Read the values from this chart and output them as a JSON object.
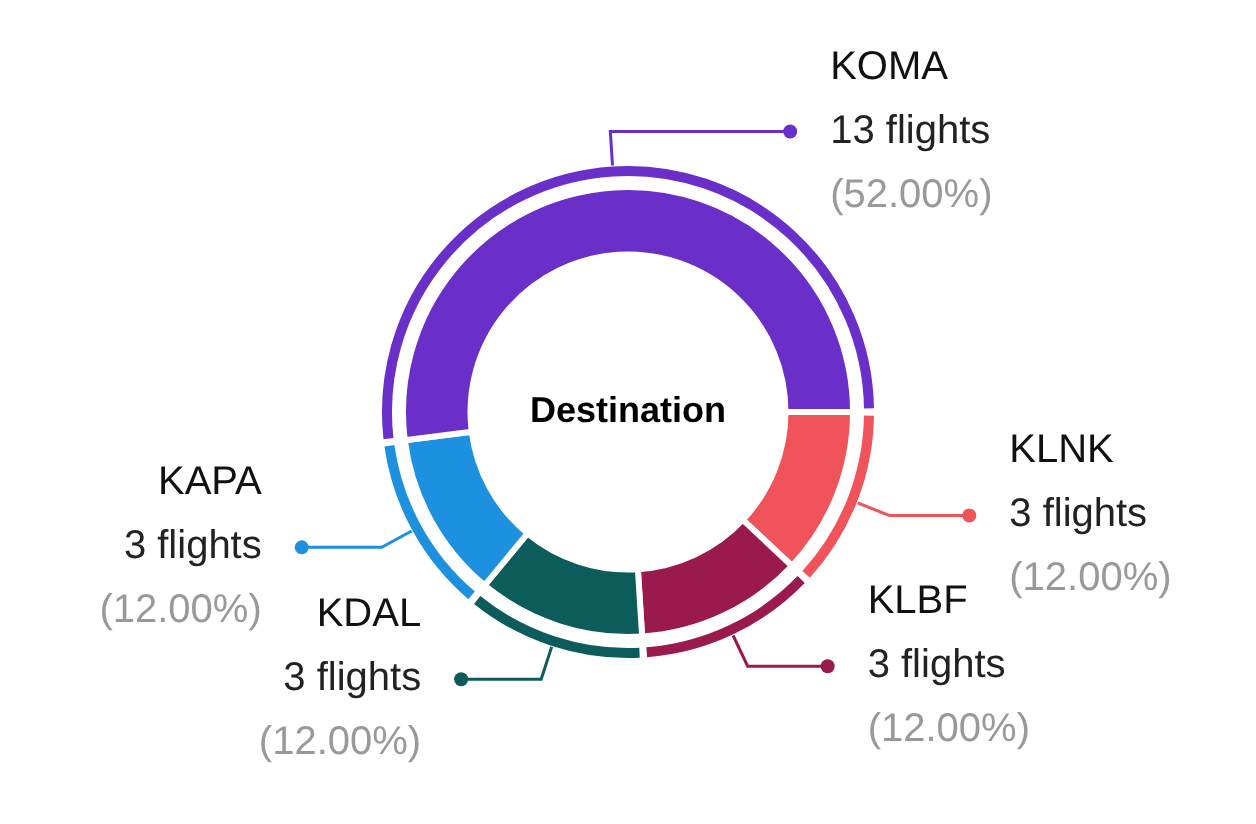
{
  "chart_data": {
    "type": "donut",
    "title": "Destination",
    "categories": [
      "KLNK",
      "KLBF",
      "KDAL",
      "KAPA",
      "KOMA"
    ],
    "values": [
      3,
      3,
      3,
      3,
      13
    ],
    "colors": [
      "#f0545a",
      "#9b1a4d",
      "#0d5c5c",
      "#1e90e0",
      "#6a2fc8"
    ],
    "value_labels": [
      "3 flights\n(12.00%)",
      "3 flights\n(12.00%)",
      "3 flights\n(12.00%)",
      "3 flights\n(12.00%)",
      "13 flights\n(52.00%)"
    ]
  }
}
